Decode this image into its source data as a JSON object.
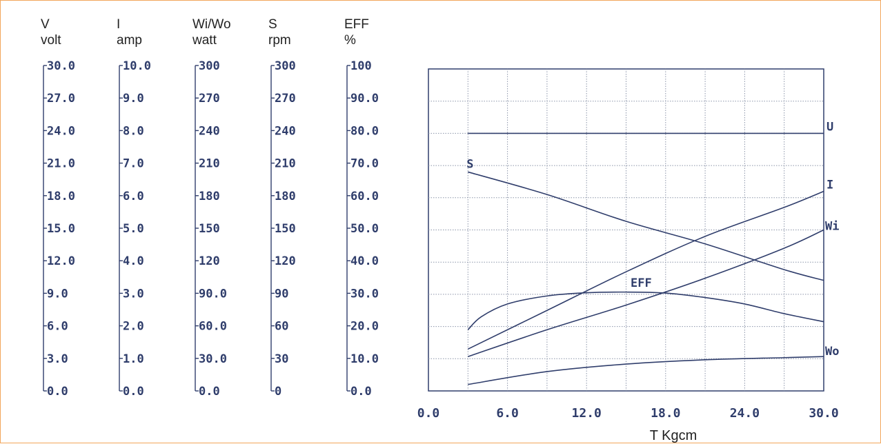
{
  "chart_data": {
    "type": "line",
    "xlabel": "T Kgcm",
    "x_ticks": [
      "0.0",
      "6.0",
      "12.0",
      "18.0",
      "24.0",
      "30.0"
    ],
    "xlim": [
      0,
      30
    ],
    "grid": true,
    "axes": [
      {
        "name": "V",
        "unit": "volt",
        "ticks": [
          "30.0",
          "27.0",
          "24.0",
          "21.0",
          "18.0",
          "15.0",
          "12.0",
          "9.0",
          "6.0",
          "3.0",
          "0.0"
        ],
        "range": [
          0,
          30
        ]
      },
      {
        "name": "I",
        "unit": "amp",
        "ticks": [
          "10.0",
          "9.0",
          "8.0",
          "7.0",
          "6.0",
          "5.0",
          "4.0",
          "3.0",
          "2.0",
          "1.0",
          "0.0"
        ],
        "range": [
          0,
          10
        ]
      },
      {
        "name": "Wi/Wo",
        "unit": "watt",
        "ticks": [
          "300",
          "270",
          "240",
          "210",
          "180",
          "150",
          "120",
          "90.0",
          "60.0",
          "30.0",
          "0.0"
        ],
        "range": [
          0,
          300
        ]
      },
      {
        "name": "S",
        "unit": "rpm",
        "ticks": [
          "300",
          "270",
          "240",
          "210",
          "180",
          "150",
          "120",
          "90",
          "60",
          "30",
          "0"
        ],
        "range": [
          0,
          300
        ]
      },
      {
        "name": "EFF",
        "unit": "%",
        "ticks": [
          "100",
          "90.0",
          "80.0",
          "70.0",
          "60.0",
          "50.0",
          "40.0",
          "30.0",
          "20.0",
          "10.0",
          "0.0"
        ],
        "range": [
          0,
          100
        ]
      }
    ],
    "series": [
      {
        "name": "U",
        "axis": 0,
        "color": "#2f3d6b",
        "x": [
          3,
          10,
          30
        ],
        "y": [
          24.0,
          24.0,
          24.0
        ]
      },
      {
        "name": "S",
        "axis": 3,
        "color": "#2f3d6b",
        "x": [
          3,
          9,
          15,
          21,
          27,
          30
        ],
        "y": [
          204,
          183,
          158,
          137,
          113,
          103
        ]
      },
      {
        "name": "I",
        "axis": 1,
        "color": "#2f3d6b",
        "x": [
          3,
          9,
          15,
          21,
          27,
          30
        ],
        "y": [
          1.3,
          2.5,
          3.7,
          4.8,
          5.7,
          6.2
        ]
      },
      {
        "name": "Wi",
        "axis": 2,
        "color": "#2f3d6b",
        "x": [
          3,
          9,
          15,
          21,
          27,
          30
        ],
        "y": [
          32,
          57,
          80,
          105,
          133,
          150
        ]
      },
      {
        "name": "EFF",
        "axis": 4,
        "color": "#2f3d6b",
        "x": [
          3,
          4,
          6,
          9,
          12,
          15,
          18,
          21,
          24,
          27,
          30
        ],
        "y": [
          19,
          23,
          27,
          29.5,
          30.5,
          30.7,
          30.4,
          29,
          27,
          24,
          21.5
        ]
      },
      {
        "name": "Wo",
        "axis": 2,
        "color": "#2f3d6b",
        "x": [
          3,
          9,
          15,
          21,
          27,
          30
        ],
        "y": [
          6,
          18,
          25,
          29,
          31,
          32
        ]
      }
    ],
    "curve_labels": [
      {
        "text": "U",
        "series": 0
      },
      {
        "text": "S",
        "series": 1
      },
      {
        "text": "I",
        "series": 2
      },
      {
        "text": "Wi",
        "series": 3
      },
      {
        "text": "EFF",
        "series": 4
      },
      {
        "text": "Wo",
        "series": 5
      }
    ]
  }
}
